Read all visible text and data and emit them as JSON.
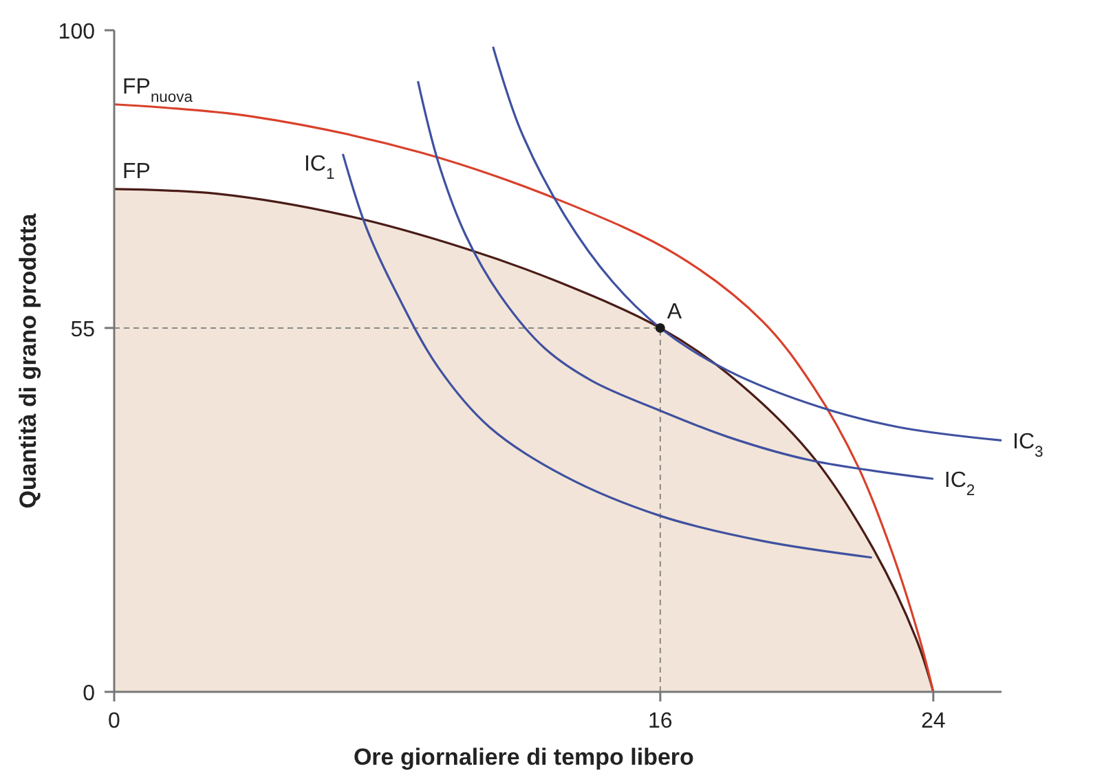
{
  "chart_data": {
    "type": "line",
    "xlabel": "Ore giornaliere di tempo libero",
    "ylabel": "Quantità di grano prodotta",
    "xlim": [
      0,
      26
    ],
    "ylim": [
      0,
      100
    ],
    "xticks": [
      0,
      16,
      24
    ],
    "yticks": [
      0,
      55,
      100
    ],
    "series": [
      {
        "name": "FP",
        "type": "area",
        "color": "#4a1c17",
        "x": [
          0,
          3,
          6.8,
          10.3,
          13,
          16,
          18,
          20.4,
          22.2,
          23.5,
          24
        ],
        "values": [
          76,
          75.3,
          72,
          67,
          62,
          55,
          48,
          36,
          22,
          8,
          0
        ]
      },
      {
        "name": "FP$_{nuova}$",
        "color": "#d9412b",
        "x": [
          0,
          4,
          9,
          13.2,
          16.5,
          19,
          20.5,
          21.8,
          22.8,
          23.6,
          24
        ],
        "values": [
          88.8,
          87,
          81.5,
          74,
          66,
          56,
          46,
          34,
          21,
          8,
          0
        ]
      },
      {
        "name": "IC$_{1}$",
        "color": "#3f51a0",
        "x": [
          6.7,
          7.4,
          8.3,
          9.5,
          11,
          13.2,
          16,
          19,
          22.2
        ],
        "values": [
          81.3,
          70,
          60,
          49,
          40,
          32.6,
          26.6,
          22.8,
          20.3
        ]
      },
      {
        "name": "IC$_{2}$",
        "color": "#3f51a0",
        "x": [
          8.9,
          9.5,
          10.3,
          11.3,
          12.6,
          14,
          16,
          18,
          20.4,
          24
        ],
        "values": [
          92.3,
          80,
          69,
          60,
          52,
          47,
          42.5,
          38.5,
          35,
          32.2
        ]
      },
      {
        "name": "IC$_{3}$",
        "color": "#3f51a0",
        "x": [
          11.1,
          11.9,
          13.2,
          14.6,
          16,
          18,
          20.7,
          23,
          26
        ],
        "values": [
          97.5,
          85,
          72,
          62,
          55,
          48.5,
          43,
          40,
          38
        ]
      },
      {
        "name": "A",
        "type": "scatter",
        "color": "#1a1a1a",
        "marker": "circle",
        "x": [
          16
        ],
        "values": [
          55
        ]
      }
    ],
    "ref_lines": [
      {
        "axis": "x",
        "value": 16,
        "color": "#888888",
        "line_style": "dashed"
      },
      {
        "axis": "y",
        "value": 55,
        "color": "#888888",
        "line_style": "dashed"
      }
    ]
  }
}
